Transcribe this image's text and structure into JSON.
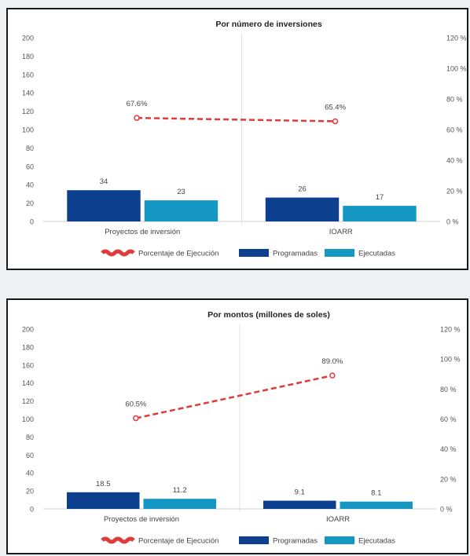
{
  "chart_data": [
    {
      "type": "bar",
      "title": "Por número de inversiones",
      "categories": [
        "Proyectos de inversión",
        "IOARR"
      ],
      "ylim": [
        0,
        200
      ],
      "y2lim": [
        0,
        120
      ],
      "y_ticks": [
        "0",
        "20",
        "40",
        "60",
        "80",
        "100",
        "120",
        "140",
        "160",
        "180",
        "200"
      ],
      "y2_ticks": [
        "0 %",
        "20 %",
        "40 %",
        "60 %",
        "80 %",
        "100 %",
        "120 %"
      ],
      "series": [
        {
          "name": "Programadas",
          "type": "bar",
          "axis": "left",
          "color": "#0d3f8f",
          "values": [
            34,
            26
          ],
          "labels": [
            "34",
            "26"
          ]
        },
        {
          "name": "Ejecutadas",
          "type": "bar",
          "axis": "left",
          "color": "#1597c4",
          "values": [
            23,
            17
          ],
          "labels": [
            "23",
            "17"
          ]
        },
        {
          "name": "Porcentaje de Ejecución",
          "type": "line",
          "axis": "right",
          "color": "#e03a3a",
          "values": [
            67.6,
            65.4
          ],
          "labels": [
            "67.6%",
            "65.4%"
          ]
        }
      ],
      "legend_position": "bottom",
      "grid": false
    },
    {
      "type": "bar",
      "title": "Por montos (millones de soles)",
      "categories": [
        "Proyectos de inversión",
        "IOARR"
      ],
      "ylim": [
        0,
        200
      ],
      "y2lim": [
        0,
        120
      ],
      "y_ticks": [
        "0",
        "20",
        "40",
        "60",
        "80",
        "100",
        "120",
        "140",
        "160",
        "180",
        "200"
      ],
      "y2_ticks": [
        "0 %",
        "20 %",
        "40 %",
        "60 %",
        "80 %",
        "100 %",
        "120 %"
      ],
      "series": [
        {
          "name": "Programadas",
          "type": "bar",
          "axis": "left",
          "color": "#0d3f8f",
          "values": [
            18.5,
            9.1
          ],
          "labels": [
            "18.5",
            "9.1"
          ]
        },
        {
          "name": "Ejecutadas",
          "type": "bar",
          "axis": "left",
          "color": "#1597c4",
          "values": [
            11.2,
            8.1
          ],
          "labels": [
            "11.2",
            "8.1"
          ]
        },
        {
          "name": "Porcentaje de Ejecución",
          "type": "line",
          "axis": "right",
          "color": "#e03a3a",
          "values": [
            60.5,
            89.0
          ],
          "labels": [
            "60.5%",
            "89.0%"
          ]
        }
      ],
      "legend_position": "bottom",
      "grid": false
    }
  ]
}
